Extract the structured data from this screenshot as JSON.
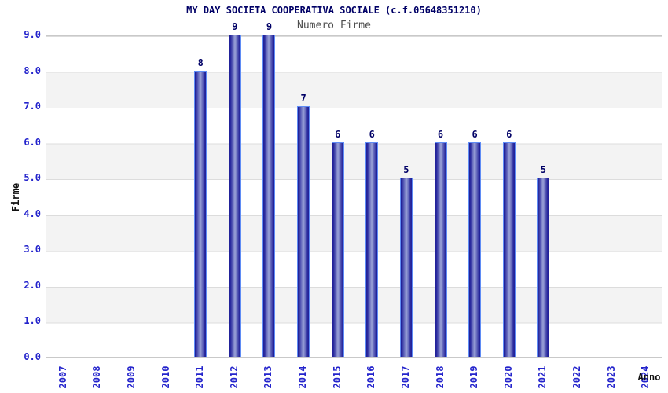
{
  "chart_data": {
    "type": "bar",
    "title": "MY DAY SOCIETA COOPERATIVA SOCIALE (c.f.05648351210)",
    "subtitle": "Numero Firme",
    "xlabel": "Anno",
    "ylabel": "Firme",
    "categories": [
      "2007",
      "2008",
      "2009",
      "2010",
      "2011",
      "2012",
      "2013",
      "2014",
      "2015",
      "2016",
      "2017",
      "2018",
      "2019",
      "2020",
      "2021",
      "2022",
      "2023",
      "2024"
    ],
    "values": [
      null,
      null,
      null,
      null,
      8,
      9,
      9,
      7,
      6,
      6,
      5,
      6,
      6,
      6,
      5,
      null,
      null,
      null
    ],
    "ylim": [
      0,
      9
    ],
    "ytick_step": 1,
    "ytick_labels": [
      "0.0",
      "1.0",
      "2.0",
      "3.0",
      "4.0",
      "5.0",
      "6.0",
      "7.0",
      "8.0",
      "9.0"
    ],
    "grid": "horizontal-bands",
    "legend": "none",
    "colors": {
      "background": "#ffffff",
      "title": "#000066",
      "subtitle": "#4d4d4d",
      "axis_tick": "#2424cc",
      "axis_title": "#111111",
      "value_label": "#000066",
      "bar_dark": "#22229a",
      "bar_light": "#9ba3d8",
      "bar_outline": "#5f8cf5",
      "band": "#f3f3f3",
      "gridline": "#dcdcdc",
      "plot_border": "#c9c9c9"
    }
  }
}
